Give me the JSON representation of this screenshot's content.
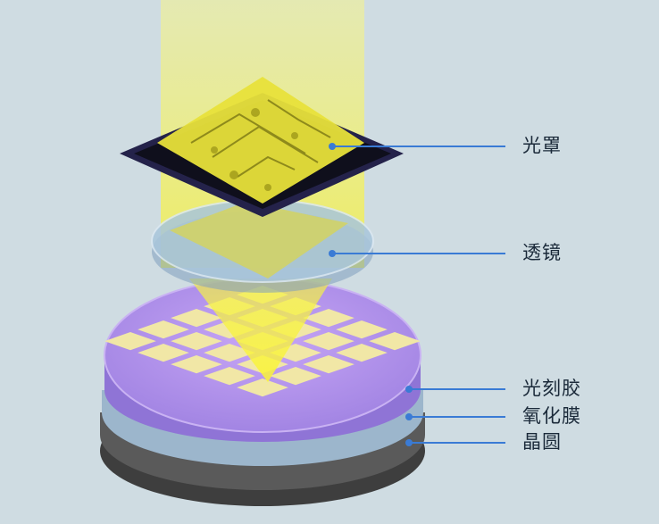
{
  "labels": {
    "photomask": "光罩",
    "lens": "透镜",
    "photoresist": "光刻胶",
    "oxide_film": "氧化膜",
    "wafer": "晶圆"
  },
  "colors": {
    "background": "#cfdce2",
    "light_beam": "#f3f04a",
    "mask_frame": "#24224a",
    "mask_pattern": "#e8e23a",
    "lens": "#a9c6dc",
    "photoresist": "#b28ee8",
    "oxide_film": "#9db8d0",
    "wafer": "#5c5c5c",
    "exposed_cells": "#f1e7a6",
    "leader_line": "#3a7bd5"
  }
}
